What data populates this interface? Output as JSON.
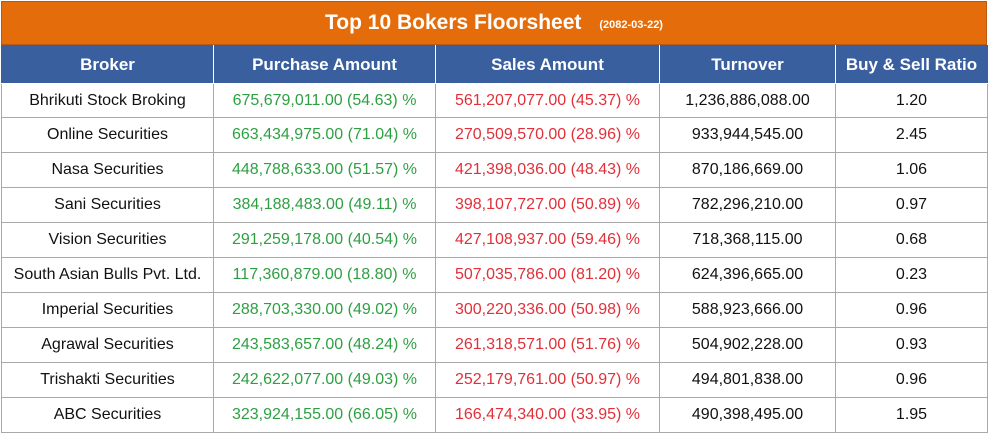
{
  "title": "Top 10 Bokers Floorsheet",
  "date": "(2082-03-22)",
  "columns": {
    "broker": "Broker",
    "purchase": "Purchase Amount",
    "sales": "Sales Amount",
    "turnover": "Turnover",
    "ratio": "Buy & Sell Ratio"
  },
  "colors": {
    "title_bg": "#e46c0a",
    "header_bg": "#3a5f9f",
    "purchase_text": "#2ea043",
    "sales_text": "#e0303a"
  },
  "rows": [
    {
      "broker": "Bhrikuti Stock Broking",
      "purchase": "675,679,011.00 (54.63) %",
      "sales": "561,207,077.00 (45.37) %",
      "turnover": "1,236,886,088.00",
      "ratio": "1.20"
    },
    {
      "broker": "Online Securities",
      "purchase": "663,434,975.00 (71.04) %",
      "sales": "270,509,570.00 (28.96) %",
      "turnover": "933,944,545.00",
      "ratio": "2.45"
    },
    {
      "broker": "Nasa Securities",
      "purchase": "448,788,633.00 (51.57) %",
      "sales": "421,398,036.00 (48.43) %",
      "turnover": "870,186,669.00",
      "ratio": "1.06"
    },
    {
      "broker": "Sani Securities",
      "purchase": "384,188,483.00 (49.11) %",
      "sales": "398,107,727.00 (50.89) %",
      "turnover": "782,296,210.00",
      "ratio": "0.97"
    },
    {
      "broker": "Vision Securities",
      "purchase": "291,259,178.00 (40.54) %",
      "sales": "427,108,937.00 (59.46) %",
      "turnover": "718,368,115.00",
      "ratio": "0.68"
    },
    {
      "broker": "South Asian Bulls Pvt. Ltd.",
      "purchase": "117,360,879.00 (18.80) %",
      "sales": "507,035,786.00 (81.20) %",
      "turnover": "624,396,665.00",
      "ratio": "0.23"
    },
    {
      "broker": "Imperial Securities",
      "purchase": "288,703,330.00 (49.02) %",
      "sales": "300,220,336.00 (50.98) %",
      "turnover": "588,923,666.00",
      "ratio": "0.96"
    },
    {
      "broker": "Agrawal Securities",
      "purchase": "243,583,657.00 (48.24) %",
      "sales": "261,318,571.00 (51.76) %",
      "turnover": "504,902,228.00",
      "ratio": "0.93"
    },
    {
      "broker": "Trishakti Securities",
      "purchase": "242,622,077.00 (49.03) %",
      "sales": "252,179,761.00 (50.97) %",
      "turnover": "494,801,838.00",
      "ratio": "0.96"
    },
    {
      "broker": "ABC Securities",
      "purchase": "323,924,155.00 (66.05) %",
      "sales": "166,474,340.00 (33.95) %",
      "turnover": "490,398,495.00",
      "ratio": "1.95"
    }
  ]
}
